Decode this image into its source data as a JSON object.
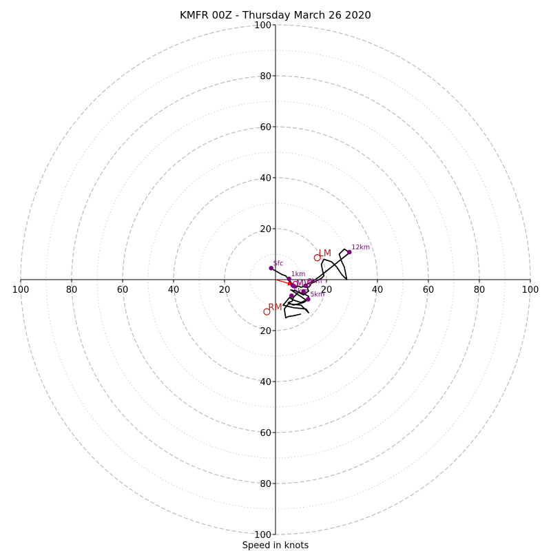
{
  "chart_data": {
    "type": "hodograph",
    "title": "KMFR 00Z - Thursday March 26 2020",
    "xlabel": "Speed in knots",
    "range": [
      -100,
      100
    ],
    "major_rings": [
      20,
      40,
      60,
      80,
      100
    ],
    "minor_rings": [
      10,
      30,
      50,
      70,
      90
    ],
    "tick_labels": {
      "x_left": [
        "100",
        "80",
        "60",
        "40",
        "20"
      ],
      "x_right": [
        "20",
        "40",
        "60",
        "80",
        "100"
      ],
      "y_up": [
        "20",
        "40",
        "60",
        "80",
        "100"
      ],
      "y_down": [
        "20",
        "40",
        "60",
        "80",
        "100"
      ]
    },
    "hodograph_line": [
      [
        -2,
        4.5
      ],
      [
        0,
        3.5
      ],
      [
        2.5,
        2
      ],
      [
        4,
        1.5
      ],
      [
        5,
        0.3
      ],
      [
        6,
        -1
      ],
      [
        7,
        -2.5
      ],
      [
        8,
        -3
      ],
      [
        9,
        -2.5
      ],
      [
        10,
        -3
      ],
      [
        12,
        -2.5
      ],
      [
        13,
        -3
      ],
      [
        14,
        -1.5
      ],
      [
        16,
        -0.5
      ],
      [
        18,
        0.5
      ],
      [
        19,
        1.5
      ],
      [
        18.5,
        3.5
      ],
      [
        18,
        6
      ],
      [
        19,
        8
      ],
      [
        22,
        7
      ],
      [
        24,
        5
      ],
      [
        26,
        2
      ],
      [
        28,
        0
      ],
      [
        27,
        5
      ],
      [
        26,
        7
      ],
      [
        25,
        10
      ],
      [
        27,
        12
      ],
      [
        28.5,
        11
      ],
      [
        29,
        10.5
      ],
      [
        17,
        1
      ],
      [
        14,
        -1
      ],
      [
        12,
        -2
      ],
      [
        13,
        -4.5
      ],
      [
        11,
        -6
      ],
      [
        9,
        -5
      ],
      [
        7,
        -7
      ],
      [
        6.5,
        -8.5
      ],
      [
        5,
        -9
      ],
      [
        7,
        -10
      ],
      [
        9,
        -9.5
      ],
      [
        11,
        -9
      ],
      [
        12.5,
        -8
      ],
      [
        13,
        -6.5
      ],
      [
        11,
        -5.5
      ],
      [
        8,
        -4.5
      ],
      [
        6,
        -4
      ],
      [
        9,
        -6
      ],
      [
        12,
        -8
      ],
      [
        10,
        -9
      ],
      [
        7,
        -8
      ],
      [
        5.5,
        -7
      ],
      [
        3,
        -10
      ],
      [
        7,
        -11
      ],
      [
        12,
        -11.5
      ],
      [
        13,
        -13
      ],
      [
        10,
        -10
      ],
      [
        5,
        -9.5
      ],
      [
        3.5,
        -11.5
      ],
      [
        4,
        -15
      ],
      [
        5,
        -14.5
      ],
      [
        7,
        -14.2
      ],
      [
        10,
        -13.5
      ]
    ],
    "height_points": [
      {
        "label": "Sfc",
        "u": -1.7,
        "v": 4.5
      },
      {
        "label": "1km",
        "u": 5.3,
        "v": 0.3
      },
      {
        "label": "",
        "u": 6.7,
        "v": -2.2
      },
      {
        "label": "",
        "u": 7.2,
        "v": -2.5
      },
      {
        "label": "3km",
        "u": 11.8,
        "v": -2.4
      },
      {
        "label": "",
        "u": 11,
        "v": -4.6
      },
      {
        "label": "5km",
        "u": 6.3,
        "v": -6.3
      },
      {
        "label": "5km",
        "u": 12.8,
        "v": -7.7
      },
      {
        "label": "12km",
        "u": 29,
        "v": 10.8
      }
    ],
    "mean_wind": {
      "label": "MW",
      "u": 7.8,
      "v": -1.6
    },
    "left_mover": {
      "label": "LM",
      "u": 16.4,
      "v": 8.6
    },
    "right_mover": {
      "label": "RM",
      "u": -3.4,
      "v": -12.6
    },
    "shear_vector": {
      "from": [
        0,
        0
      ],
      "to": [
        7,
        -2
      ]
    },
    "colors": {
      "hodo_line": "#000000",
      "points": "#800080",
      "motion": "#b22222",
      "mean_wind": "#a0007a",
      "shear_arrow": "#ff0000",
      "rings": "#bbbbbb",
      "minor_rings": "#cccccc"
    }
  }
}
